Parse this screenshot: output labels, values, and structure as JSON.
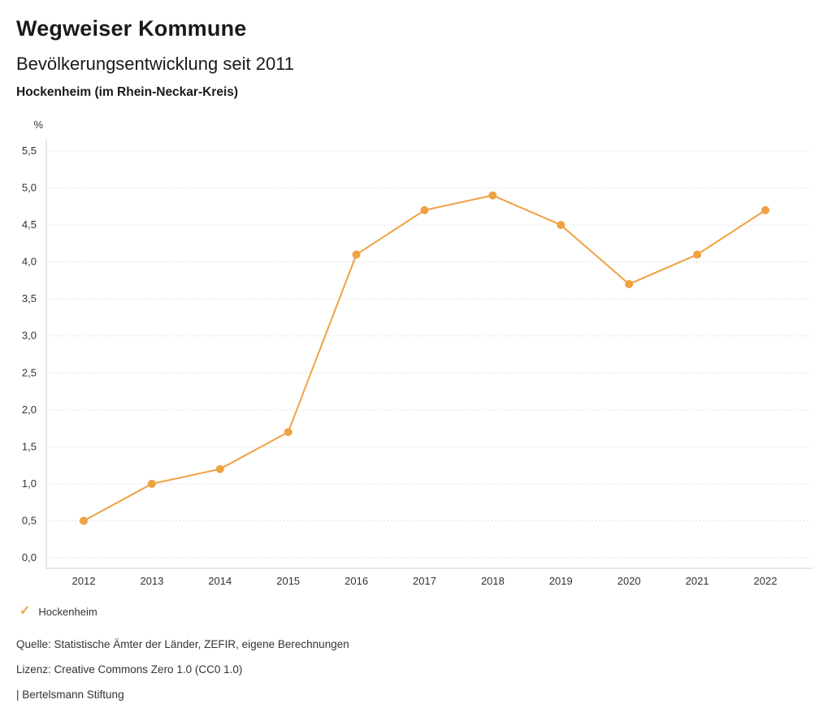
{
  "header": {
    "title": "Wegweiser Kommune",
    "subtitle": "Bevölkerungsentwicklung seit 2011",
    "region": "Hockenheim (im Rhein-Neckar-Kreis)"
  },
  "chart_data": {
    "type": "line",
    "title": "Bevölkerungsentwicklung seit 2011",
    "unit_label": "%",
    "x": [
      "2012",
      "2013",
      "2014",
      "2015",
      "2016",
      "2017",
      "2018",
      "2019",
      "2020",
      "2021",
      "2022"
    ],
    "series": [
      {
        "name": "Hockenheim",
        "values": [
          0.5,
          1.0,
          1.2,
          1.7,
          4.1,
          4.7,
          4.9,
          4.5,
          3.7,
          4.1,
          4.7
        ],
        "color": "#F0A143"
      }
    ],
    "ylim": [
      0.0,
      5.5
    ],
    "ytick_step": 0.5,
    "ytick_labels": [
      "0,0",
      "0,5",
      "1,0",
      "1,5",
      "2,0",
      "2,5",
      "3,0",
      "3,5",
      "4,0",
      "4,5",
      "5,0",
      "5,5"
    ],
    "grid": "dotted-horizontal",
    "grid_color": "#cccccc",
    "axis_color": "#cccccc",
    "tick_label_color": "#333333",
    "legend_position": "bottom-left"
  },
  "legend": {
    "items": [
      {
        "label": "Hockenheim",
        "color": "#F0A143",
        "marker": "✓"
      }
    ]
  },
  "footer": {
    "source": "Quelle: Statistische Ämter der Länder, ZEFIR, eigene Berechnungen",
    "license": "Lizenz: Creative Commons Zero 1.0 (CC0 1.0)",
    "attribution": "| Bertelsmann Stiftung"
  }
}
